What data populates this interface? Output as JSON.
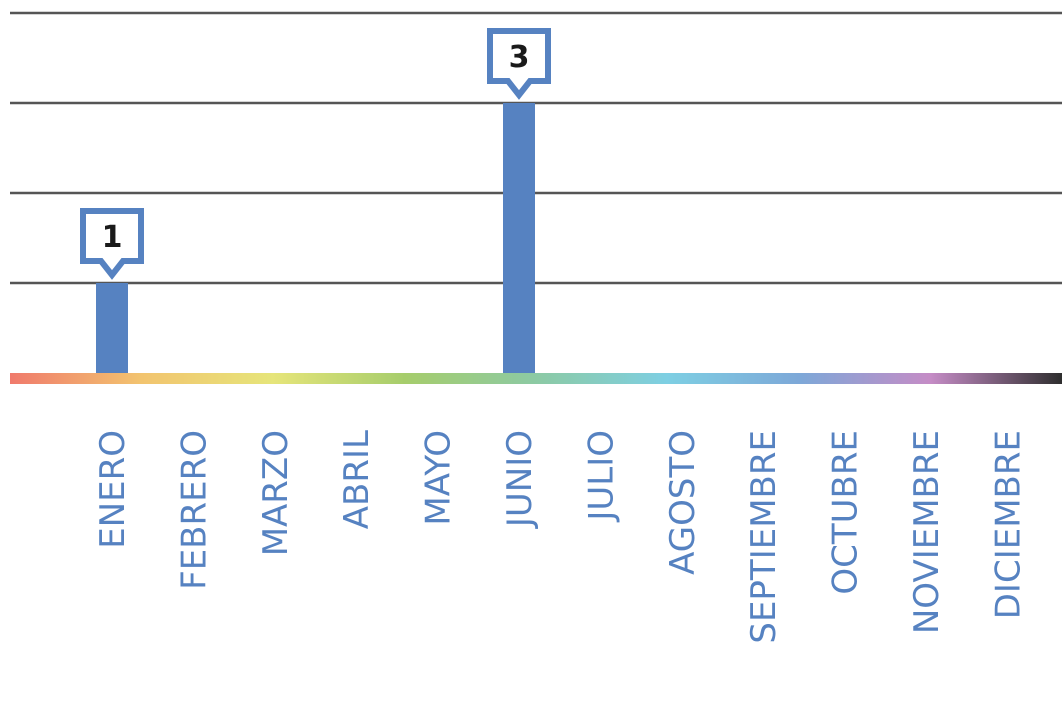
{
  "chart_data": {
    "type": "bar",
    "categories": [
      "ENERO",
      "FEBRERO",
      "MARZO",
      "ABRIL",
      "MAYO",
      "JUNIO",
      "JULIO",
      "AGOSTO",
      "SEPTIEMBRE",
      "OCTUBRE",
      "NOVIEMBRE",
      "DICIEMBRE"
    ],
    "values": [
      1,
      0,
      0,
      0,
      0,
      3,
      0,
      0,
      0,
      0,
      0,
      0
    ],
    "data_labels": [
      "1",
      "",
      "",
      "",
      "",
      "3",
      "",
      "",
      "",
      "",
      "",
      ""
    ],
    "title": "",
    "xlabel": "",
    "ylabel": "",
    "ylim": [
      0,
      4
    ],
    "grid": true,
    "legend": "none",
    "colors": {
      "bar": "#5682c1",
      "label_text": "#5682c1",
      "grid": "#555555",
      "baseline_gradient": [
        "#f07a6c",
        "#f2c46f",
        "#e6e57a",
        "#a6cd6c",
        "#8ccaa4",
        "#7ecfe3",
        "#7da8d8",
        "#c58cc6",
        "#2e2e2e"
      ]
    }
  }
}
